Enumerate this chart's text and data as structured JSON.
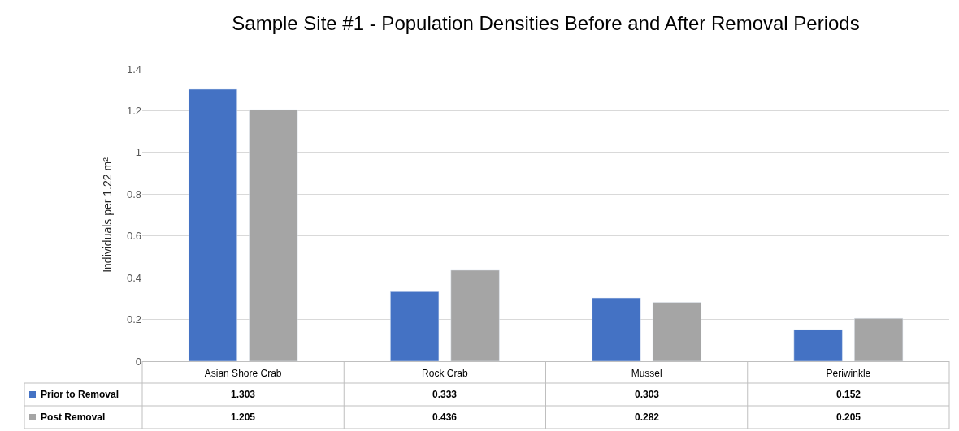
{
  "chart_data": {
    "type": "bar",
    "title": "Sample Site #1 - Population Densities Before and After Removal Periods",
    "ylabel": "Individuals per 1.22 m²",
    "categories": [
      "Asian Shore Crab",
      "Rock Crab",
      "Mussel",
      "Periwinkle"
    ],
    "series": [
      {
        "name": "Prior to Removal",
        "color": "#4472c4",
        "values": [
          1.303,
          0.333,
          0.303,
          0.152
        ]
      },
      {
        "name": "Post Removal",
        "color": "#a5a5a5",
        "values": [
          1.205,
          0.436,
          0.282,
          0.205
        ]
      }
    ],
    "ylim": [
      0,
      1.4
    ],
    "yticks": [
      0,
      0.2,
      0.4,
      0.6,
      0.8,
      1,
      1.2,
      1.4
    ],
    "grid": "y",
    "legend": "bottom",
    "data_labels": true
  }
}
